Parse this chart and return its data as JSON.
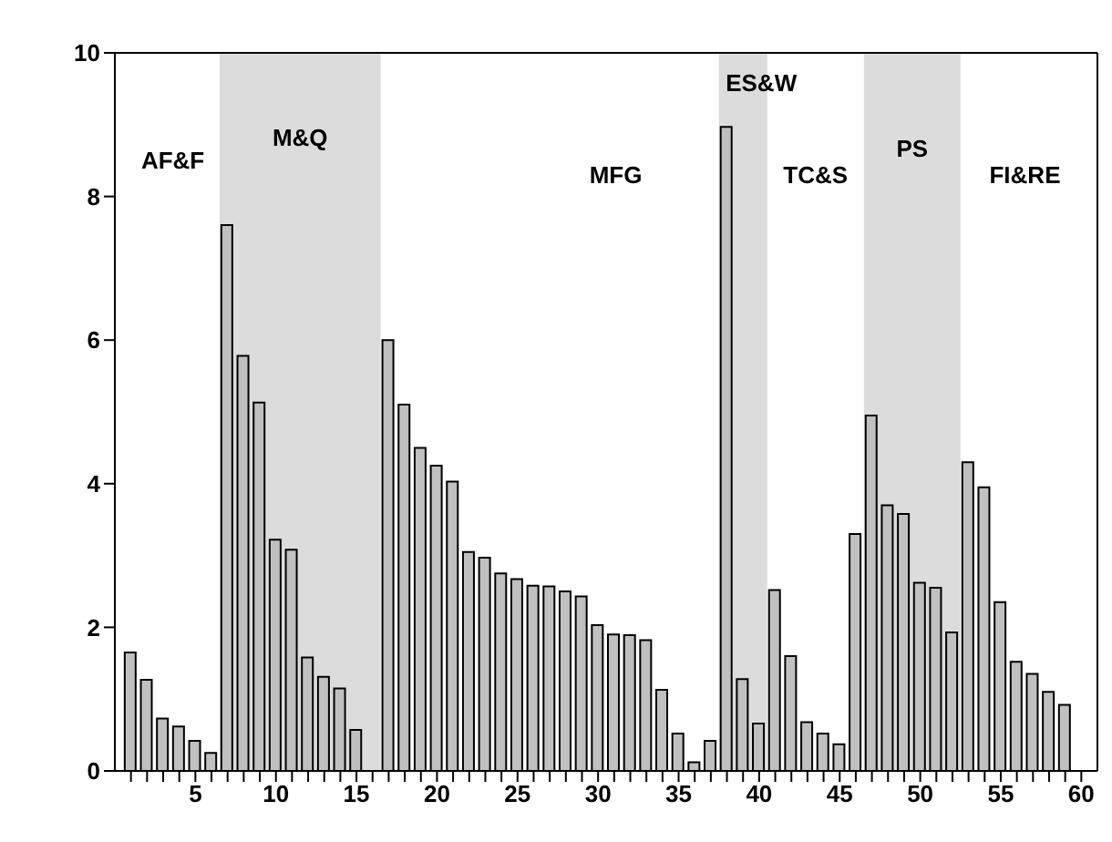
{
  "chart_data": {
    "type": "bar",
    "x": [
      1,
      2,
      3,
      4,
      5,
      6,
      7,
      8,
      9,
      10,
      11,
      12,
      13,
      14,
      15,
      16,
      17,
      18,
      19,
      20,
      21,
      22,
      23,
      24,
      25,
      26,
      27,
      28,
      29,
      30,
      31,
      32,
      33,
      34,
      35,
      36,
      37,
      38,
      39,
      40,
      41,
      42,
      43,
      44,
      45,
      46,
      47,
      48,
      49,
      50,
      51,
      52,
      53,
      54,
      55,
      56,
      57,
      58,
      59,
      60
    ],
    "values": [
      1.65,
      1.27,
      0.73,
      0.62,
      0.42,
      0.25,
      7.6,
      5.78,
      5.13,
      3.22,
      3.08,
      1.58,
      1.31,
      1.15,
      0.57,
      0,
      6.0,
      5.1,
      4.5,
      4.25,
      4.03,
      3.05,
      2.97,
      2.75,
      2.67,
      2.58,
      2.57,
      2.5,
      2.43,
      2.03,
      1.9,
      1.89,
      1.82,
      1.13,
      0.52,
      0.12,
      0.42,
      8.97,
      1.28,
      0.66,
      2.52,
      1.6,
      0.68,
      0.52,
      0.37,
      3.3,
      4.95,
      3.7,
      3.58,
      2.62,
      2.55,
      1.93,
      4.3,
      3.95,
      2.35,
      1.52,
      1.35,
      1.1,
      0.92,
      0
    ],
    "color": "#c0c0c0",
    "xlim": [
      0,
      61
    ],
    "xticks": [
      {
        "value": 1,
        "label": null
      },
      {
        "value": 2,
        "label": null
      },
      {
        "value": 3,
        "label": null
      },
      {
        "value": 4,
        "label": null
      },
      5,
      {
        "value": 6,
        "label": null
      },
      {
        "value": 7,
        "label": null
      },
      {
        "value": 8,
        "label": null
      },
      {
        "value": 9,
        "label": null
      },
      10,
      {
        "value": 11,
        "label": null
      },
      {
        "value": 12,
        "label": null
      },
      {
        "value": 13,
        "label": null
      },
      {
        "value": 14,
        "label": null
      },
      15,
      {
        "value": 16,
        "label": null
      },
      {
        "value": 17,
        "label": null
      },
      {
        "value": 18,
        "label": null
      },
      {
        "value": 19,
        "label": null
      },
      20,
      {
        "value": 21,
        "label": null
      },
      {
        "value": 22,
        "label": null
      },
      {
        "value": 23,
        "label": null
      },
      {
        "value": 24,
        "label": null
      },
      25,
      {
        "value": 26,
        "label": null
      },
      {
        "value": 27,
        "label": null
      },
      {
        "value": 28,
        "label": null
      },
      {
        "value": 29,
        "label": null
      },
      30,
      {
        "value": 31,
        "label": null
      },
      {
        "value": 32,
        "label": null
      },
      {
        "value": 33,
        "label": null
      },
      {
        "value": 34,
        "label": null
      },
      35,
      {
        "value": 36,
        "label": null
      },
      {
        "value": 37,
        "label": null
      },
      {
        "value": 38,
        "label": null
      },
      {
        "value": 39,
        "label": null
      },
      40,
      {
        "value": 41,
        "label": null
      },
      {
        "value": 42,
        "label": null
      },
      {
        "value": 43,
        "label": null
      },
      {
        "value": 44,
        "label": null
      },
      45,
      {
        "value": 46,
        "label": null
      },
      {
        "value": 47,
        "label": null
      },
      {
        "value": 48,
        "label": null
      },
      {
        "value": 49,
        "label": null
      },
      50,
      {
        "value": 51,
        "label": null
      },
      {
        "value": 52,
        "label": null
      },
      {
        "value": 53,
        "label": null
      },
      {
        "value": 54,
        "label": null
      },
      55,
      {
        "value": 56,
        "label": null
      },
      {
        "value": 57,
        "label": null
      },
      {
        "value": 58,
        "label": null
      },
      {
        "value": 59,
        "label": null
      },
      60
    ],
    "ylim": [
      0,
      10
    ],
    "yticks": [
      0,
      2,
      4,
      6,
      8,
      10
    ],
    "grid": false,
    "legend": false,
    "bands": [
      {
        "axis": "x",
        "from": 6.5,
        "to": 16.5,
        "color": "#dcdcdc",
        "label": "M&Q"
      },
      {
        "axis": "x",
        "from": 37.5,
        "to": 40.5,
        "color": "#dcdcdc",
        "label": "ES&W"
      },
      {
        "axis": "x",
        "from": 46.5,
        "to": 52.5,
        "color": "#dcdcdc",
        "label": "PS"
      }
    ],
    "annotations": [
      "AF&F",
      "MFG",
      "TC&S",
      "FI&RE"
    ]
  }
}
